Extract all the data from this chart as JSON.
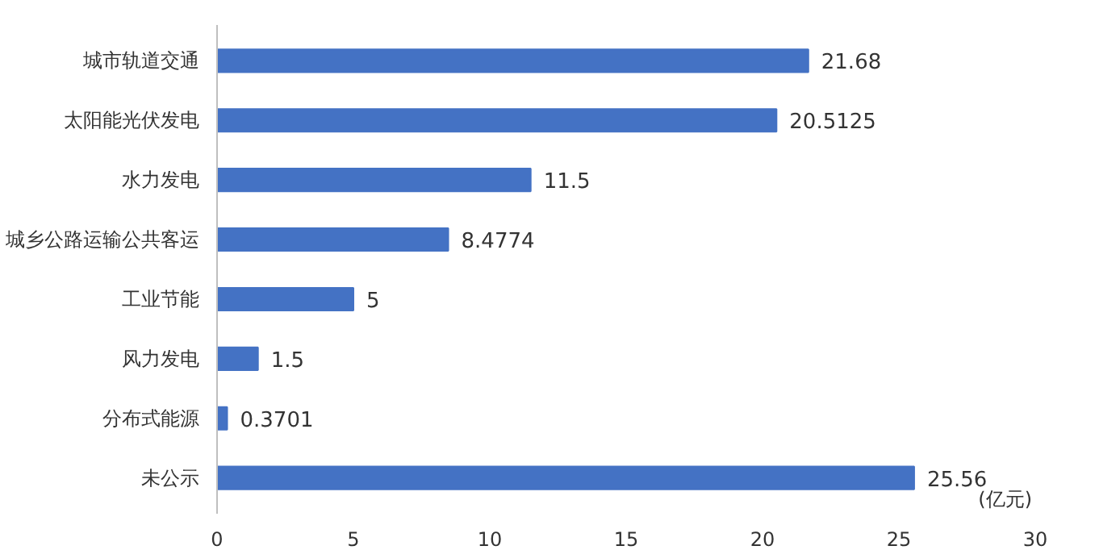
{
  "chart_data": {
    "type": "bar",
    "orientation": "horizontal",
    "xlabel": "(亿元)",
    "categories": [
      "城市轨道交通",
      "太阳能光伏发电",
      "水力发电",
      "城乡公路运输公共客运",
      "工业节能",
      "风力发电",
      "分布式能源",
      "未公示"
    ],
    "values": [
      21.68,
      20.5125,
      11.5,
      8.4774,
      5,
      1.5,
      0.3701,
      25.56
    ],
    "color": "#4472c4",
    "xlim": [
      0,
      30
    ],
    "xticks": [
      0,
      5,
      10,
      15,
      20,
      25,
      30
    ],
    "data_labels": true,
    "grid": false
  }
}
